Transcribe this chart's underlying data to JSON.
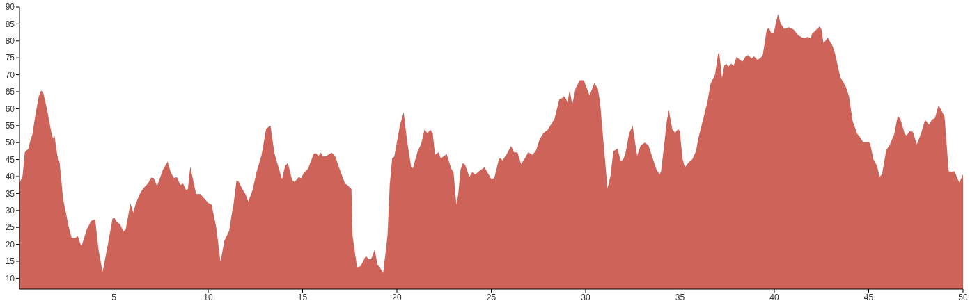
{
  "chart_data": {
    "type": "area",
    "color": "#cd6359",
    "xlim": [
      0,
      50
    ],
    "ylim": [
      6.8,
      90
    ],
    "xticks": [
      5,
      10,
      15,
      20,
      25,
      30,
      35,
      40,
      45,
      50
    ],
    "yticks": [
      10,
      15,
      20,
      25,
      30,
      35,
      40,
      45,
      50,
      55,
      60,
      65,
      70,
      75,
      80,
      85,
      90
    ],
    "grid": false,
    "legend": false,
    "x": [
      0,
      0.16,
      0.28,
      0.47,
      0.59,
      0.68,
      0.84,
      1.02,
      1.14,
      1.24,
      1.45,
      1.7,
      1.78,
      1.85,
      2.0,
      2.13,
      2.31,
      2.62,
      2.77,
      2.99,
      3.05,
      3.11,
      3.24,
      3.3,
      3.55,
      3.79,
      4.01,
      4.19,
      4.4,
      4.65,
      4.93,
      5.02,
      5.14,
      5.33,
      5.51,
      5.63,
      5.88,
      6.03,
      6.15,
      6.37,
      6.56,
      6.8,
      6.98,
      7.11,
      7.29,
      7.6,
      7.85,
      8.01,
      8.18,
      8.34,
      8.52,
      8.67,
      8.83,
      8.92,
      9.05,
      9.36,
      9.57,
      9.75,
      10.0,
      10.18,
      10.43,
      10.55,
      10.65,
      10.86,
      11.11,
      11.23,
      11.35,
      11.5,
      11.6,
      11.82,
      11.97,
      12.12,
      12.34,
      12.56,
      12.83,
      13.07,
      13.3,
      13.51,
      13.91,
      14.08,
      14.22,
      14.45,
      14.58,
      14.8,
      14.92,
      15.04,
      15.29,
      15.6,
      15.72,
      15.84,
      15.97,
      16.09,
      16.27,
      16.54,
      16.72,
      16.91,
      17.09,
      17.25,
      17.38,
      17.59,
      17.65,
      17.89,
      18.08,
      18.32,
      18.39,
      18.51,
      18.63,
      18.82,
      18.98,
      19.13,
      19.27,
      19.5,
      19.62,
      19.75,
      19.86,
      20.17,
      20.36,
      20.54,
      20.76,
      20.85,
      21.1,
      21.28,
      21.47,
      21.61,
      21.77,
      21.9,
      22.02,
      22.2,
      22.33,
      22.64,
      22.76,
      22.88,
      23.0,
      23.15,
      23.25,
      23.37,
      23.5,
      23.62,
      23.84,
      23.99,
      24.15,
      24.36,
      24.64,
      24.79,
      25.01,
      25.16,
      25.41,
      25.51,
      25.59,
      25.84,
      26.05,
      26.21,
      26.39,
      26.58,
      26.76,
      26.95,
      27.19,
      27.38,
      27.56,
      27.75,
      27.99,
      28.36,
      28.61,
      28.73,
      28.83,
      28.92,
      29.04,
      29.16,
      29.29,
      29.47,
      29.69,
      29.9,
      30.21,
      30.46,
      30.64,
      30.76,
      30.95,
      31.16,
      31.32,
      31.47,
      31.69,
      31.87,
      32.0,
      32.12,
      32.3,
      32.49,
      32.73,
      32.92,
      33.14,
      33.33,
      33.51,
      33.76,
      33.92,
      34.0,
      34.13,
      34.31,
      34.41,
      34.59,
      34.74,
      34.9,
      34.99,
      35.14,
      35.26,
      35.45,
      35.66,
      35.85,
      35.97,
      36.22,
      36.46,
      36.62,
      36.86,
      37.02,
      37.08,
      37.23,
      37.35,
      37.47,
      37.55,
      37.72,
      37.84,
      38.0,
      38.18,
      38.31,
      38.49,
      38.61,
      38.8,
      38.92,
      39.11,
      39.29,
      39.39,
      39.6,
      39.72,
      39.84,
      39.97,
      40.19,
      40.34,
      40.52,
      40.77,
      41.01,
      41.26,
      41.47,
      41.63,
      41.75,
      41.93,
      41.99,
      42.24,
      42.39,
      42.49,
      42.61,
      42.83,
      43.1,
      43.22,
      43.49,
      43.78,
      43.96,
      44.15,
      44.39,
      44.51,
      44.72,
      44.88,
      45.07,
      45.25,
      45.44,
      45.58,
      45.71,
      45.93,
      46.11,
      46.36,
      46.54,
      46.67,
      46.91,
      47.01,
      47.16,
      47.34,
      47.55,
      47.77,
      47.99,
      48.2,
      48.36,
      48.51,
      48.7,
      48.85,
      49.02,
      49.24,
      49.37,
      49.55,
      49.8,
      50.0
    ],
    "values": [
      38.1,
      40.1,
      47.1,
      48.2,
      50.9,
      52.3,
      58.1,
      63.6,
      65.3,
      65.1,
      60.1,
      52.6,
      51.2,
      52.1,
      46.4,
      44.0,
      33.4,
      24.9,
      21.8,
      21.9,
      22.6,
      22.1,
      19.9,
      19.7,
      24.2,
      26.9,
      27.4,
      18.4,
      11.8,
      19.0,
      27.6,
      27.9,
      26.7,
      25.9,
      23.8,
      24.5,
      32.1,
      29.3,
      31.8,
      34.8,
      36.5,
      37.9,
      39.7,
      39.6,
      37.2,
      42.0,
      44.4,
      41.3,
      39.6,
      39.8,
      37.5,
      37.9,
      36.0,
      36.2,
      42.9,
      34.8,
      34.9,
      33.8,
      32.2,
      31.7,
      24.9,
      19.4,
      14.9,
      21.1,
      24.0,
      28.3,
      32.1,
      38.8,
      38.6,
      36.2,
      34.9,
      32.6,
      35.8,
      41.3,
      46.4,
      54.1,
      55.0,
      46.8,
      39.2,
      43.2,
      44.0,
      38.9,
      38.4,
      39.9,
      39.5,
      40.8,
      42.3,
      46.8,
      46.8,
      46.1,
      47.0,
      45.9,
      46.1,
      47.0,
      46.1,
      43.0,
      40.3,
      37.9,
      37.5,
      36.3,
      22.5,
      13.2,
      13.6,
      16.3,
      16.4,
      15.6,
      15.6,
      18.4,
      13.9,
      12.9,
      11.5,
      22.5,
      37.5,
      45.4,
      45.9,
      55.3,
      59.0,
      50.5,
      42.7,
      42.5,
      47.5,
      49.5,
      54.0,
      52.7,
      53.8,
      52.7,
      46.4,
      47.1,
      45.4,
      46.6,
      44.4,
      42.3,
      41.3,
      31.7,
      34.8,
      42.0,
      44.0,
      43.4,
      39.9,
      41.3,
      40.6,
      41.6,
      42.7,
      41.3,
      39.2,
      39.6,
      45.2,
      45.4,
      44.7,
      46.8,
      49.0,
      47.1,
      47.1,
      43.7,
      45.1,
      47.1,
      46.4,
      47.8,
      50.9,
      52.7,
      53.8,
      57.1,
      62.9,
      63.0,
      63.6,
      63.4,
      61.8,
      65.6,
      61.2,
      66.0,
      68.4,
      68.4,
      63.9,
      67.5,
      66.0,
      62.2,
      49.9,
      36.5,
      40.3,
      47.5,
      48.2,
      44.4,
      45.1,
      47.0,
      52.6,
      55.0,
      46.1,
      49.2,
      50.0,
      49.2,
      46.1,
      42.0,
      40.6,
      41.6,
      47.8,
      56.7,
      59.6,
      54.0,
      52.9,
      54.0,
      53.3,
      45.1,
      42.7,
      44.1,
      45.1,
      47.5,
      51.2,
      56.7,
      62.2,
      67.3,
      70.1,
      76.2,
      76.6,
      69.0,
      72.8,
      73.2,
      72.3,
      73.3,
      72.6,
      75.3,
      74.4,
      73.9,
      75.5,
      75.8,
      74.8,
      75.5,
      74.4,
      75.1,
      75.9,
      83.4,
      83.8,
      82.2,
      82.4,
      87.9,
      85.1,
      83.6,
      84.0,
      83.4,
      81.7,
      81.0,
      80.8,
      81.2,
      80.8,
      82.0,
      83.4,
      84.2,
      83.6,
      79.3,
      81.0,
      78.3,
      76.2,
      69.4,
      66.6,
      63.6,
      56.4,
      52.6,
      51.9,
      50.0,
      50.3,
      49.9,
      45.1,
      43.2,
      39.9,
      40.7,
      47.8,
      49.2,
      52.6,
      57.9,
      57.1,
      52.6,
      52.1,
      53.3,
      53.2,
      49.5,
      52.6,
      56.7,
      55.3,
      56.8,
      57.2,
      61.0,
      59.5,
      57.7,
      41.6,
      41.3,
      41.6,
      38.2,
      40.6
    ]
  }
}
